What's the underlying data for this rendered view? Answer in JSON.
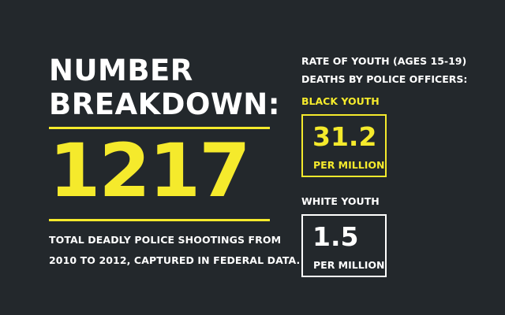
{
  "colors": {
    "background": "#23282c",
    "accent": "#f5ea2c",
    "text": "#ffffff"
  },
  "left": {
    "heading": [
      "NUMBER",
      "BREAKDOWN:"
    ],
    "big_number": "1217",
    "caption": [
      "TOTAL DEADLY POLICE SHOOTINGS FROM",
      "2010 TO 2012, CAPTURED IN FEDERAL DATA."
    ]
  },
  "right": {
    "title": [
      "RATE OF YOUTH (AGES 15-19)",
      "DEATHS BY POLICE OFFICERS:"
    ],
    "black": {
      "label": "BLACK YOUTH",
      "value": "31.2",
      "unit": "PER MILLION"
    },
    "white": {
      "label": "WHITE YOUTH",
      "value": "1.5",
      "unit": "PER MILLION"
    }
  }
}
